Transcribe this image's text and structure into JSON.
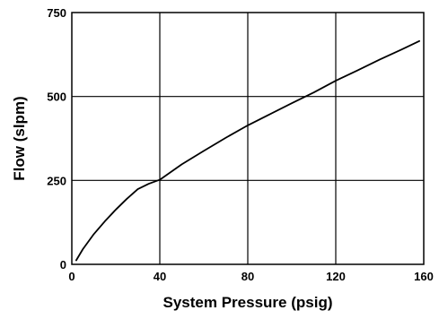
{
  "chart_data": {
    "type": "line",
    "xlabel": "System Pressure (psig)",
    "ylabel": "Flow (slpm)",
    "xlim": [
      0,
      160
    ],
    "ylim": [
      0,
      750
    ],
    "xticks": [
      0,
      40,
      80,
      120,
      160
    ],
    "yticks": [
      0,
      250,
      500,
      750
    ],
    "grid": true,
    "series": [
      {
        "color": "#000000",
        "x": [
          2,
          5,
          10,
          15,
          20,
          25,
          30,
          35,
          40,
          50,
          60,
          70,
          80,
          90,
          100,
          110,
          120,
          130,
          140,
          150,
          158
        ],
        "y": [
          12,
          45,
          90,
          128,
          163,
          195,
          224,
          240,
          252,
          298,
          338,
          377,
          414,
          447,
          480,
          512,
          547,
          578,
          610,
          640,
          665
        ]
      }
    ]
  }
}
